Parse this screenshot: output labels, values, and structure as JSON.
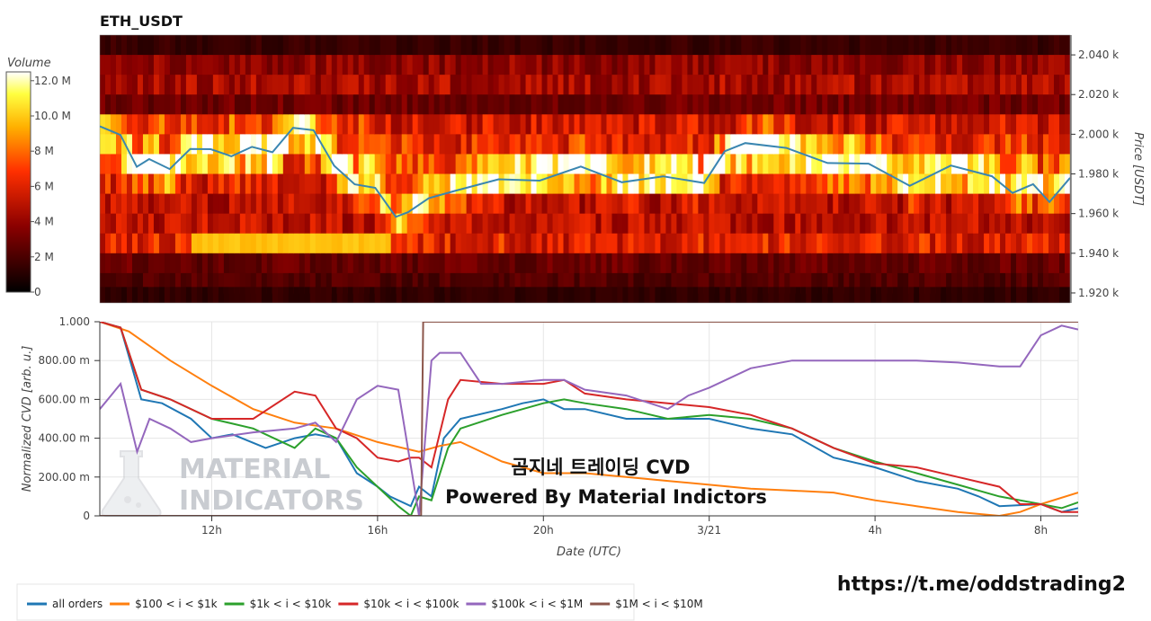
{
  "chart_data": [
    {
      "type": "heatmap",
      "title": "ETH_USDT",
      "ylabel": "Price [USDT]",
      "ylim": [
        1915,
        2050
      ],
      "y_ticks": [
        "2.040 k",
        "2.020 k",
        "2.000 k",
        "1.980 k",
        "1.960 k",
        "1.940 k",
        "1.920 k"
      ],
      "y_tick_values": [
        2040,
        2020,
        2000,
        1980,
        1960,
        1940,
        1920
      ],
      "colorbar": {
        "label": "Volume",
        "ticks": [
          "12.0 M",
          "10.0 M",
          "8 M",
          "6 M",
          "4 M",
          "2 M",
          "0"
        ],
        "tick_values": [
          12,
          10,
          8,
          6,
          4,
          2,
          0
        ],
        "range": [
          0,
          12.5
        ]
      },
      "time_range_hours": [
        9.3,
        32.9
      ],
      "price_bands": [
        {
          "price": 2045,
          "base": 1.5
        },
        {
          "price": 2035,
          "base": 3.8
        },
        {
          "price": 2025,
          "base": 4.5
        },
        {
          "price": 2015,
          "base": 3.0
        },
        {
          "price": 2005,
          "base": 5.5
        },
        {
          "price": 1995,
          "base": 6.5
        },
        {
          "price": 1985,
          "base": 7.5
        },
        {
          "price": 1975,
          "base": 6.0
        },
        {
          "price": 1965,
          "base": 5.0
        },
        {
          "price": 1955,
          "base": 5.0
        },
        {
          "price": 1945,
          "base": 6.0
        },
        {
          "price": 1935,
          "base": 2.8
        },
        {
          "price": 1925,
          "base": 2.2
        },
        {
          "price": 1918,
          "base": 1.3
        }
      ],
      "price_line": {
        "name": "price",
        "x": [
          9.3,
          9.8,
          10.2,
          10.5,
          11.0,
          11.5,
          12.0,
          12.5,
          13.0,
          13.5,
          14.0,
          14.5,
          15.0,
          15.5,
          16.0,
          16.5,
          16.8,
          17.3,
          18.0,
          19.0,
          20.0,
          21.0,
          22.0,
          23.0,
          24.0,
          24.5,
          25.0,
          26.0,
          27.0,
          28.0,
          29.0,
          30.0,
          31.0,
          31.5,
          32.0,
          32.4,
          32.9
        ],
        "y": [
          2004,
          2000,
          1984,
          1988,
          1982,
          1992,
          1993,
          1990,
          1994,
          1991,
          2004,
          2001,
          1985,
          1975,
          1973,
          1957,
          1962,
          1967,
          1973,
          1977,
          1978,
          1985,
          1976,
          1978,
          1976,
          1990,
          1996,
          1994,
          1985,
          1986,
          1975,
          1983,
          1978,
          1970,
          1976,
          1966,
          1978
        ]
      }
    },
    {
      "type": "line",
      "ylabel": "Normalized CVD [arb. u.]",
      "xlabel": "Date (UTC)",
      "ylim": [
        0,
        1.0
      ],
      "y_ticks": [
        "1.000",
        "800.00 m",
        "600.00 m",
        "400.00 m",
        "200.00 m",
        "0"
      ],
      "y_tick_values": [
        1.0,
        0.8,
        0.6,
        0.4,
        0.2,
        0
      ],
      "xlim": [
        9.3,
        32.9
      ],
      "x_ticks": [
        "12h",
        "16h",
        "20h",
        "3/21",
        "4h",
        "8h"
      ],
      "x_tick_values": [
        12,
        16,
        20,
        24,
        28,
        32
      ],
      "legend_position": "bottom",
      "series": [
        {
          "name": "all orders",
          "color": "#1f77b4",
          "x": [
            9.3,
            9.8,
            10.3,
            10.8,
            11.5,
            12.0,
            12.5,
            13.3,
            14.0,
            14.5,
            15.0,
            15.5,
            16.0,
            16.3,
            16.8,
            17.0,
            17.3,
            17.6,
            18.0,
            19.0,
            19.5,
            20.0,
            20.5,
            21.0,
            22.0,
            23.0,
            24.0,
            25.0,
            26.0,
            27.0,
            28.0,
            29.0,
            30.0,
            30.5,
            31.0,
            32.0,
            32.5,
            32.9
          ],
          "y": [
            1.0,
            0.97,
            0.6,
            0.58,
            0.5,
            0.4,
            0.42,
            0.35,
            0.4,
            0.42,
            0.4,
            0.22,
            0.15,
            0.1,
            0.05,
            0.15,
            0.1,
            0.4,
            0.5,
            0.55,
            0.58,
            0.6,
            0.55,
            0.55,
            0.5,
            0.5,
            0.5,
            0.45,
            0.42,
            0.3,
            0.25,
            0.18,
            0.14,
            0.1,
            0.05,
            0.06,
            0.02,
            0.04
          ]
        },
        {
          "name": "$100 < i < $1k",
          "color": "#ff7f0e",
          "x": [
            9.3,
            10.0,
            11.0,
            12.0,
            13.0,
            14.0,
            15.0,
            16.0,
            17.0,
            17.5,
            18.0,
            19.0,
            20.0,
            21.0,
            22.0,
            23.0,
            24.0,
            25.0,
            26.0,
            27.0,
            28.0,
            29.0,
            30.0,
            31.0,
            31.5,
            32.0,
            32.9
          ],
          "y": [
            1.0,
            0.95,
            0.8,
            0.67,
            0.55,
            0.48,
            0.45,
            0.38,
            0.33,
            0.36,
            0.38,
            0.28,
            0.22,
            0.22,
            0.2,
            0.18,
            0.16,
            0.14,
            0.13,
            0.12,
            0.08,
            0.05,
            0.02,
            0.0,
            0.02,
            0.06,
            0.12
          ]
        },
        {
          "name": "$1k < i < $10k",
          "color": "#2ca02c",
          "x": [
            9.3,
            9.8,
            10.3,
            11.0,
            12.0,
            13.0,
            14.0,
            14.5,
            15.0,
            15.5,
            16.0,
            16.5,
            16.8,
            17.0,
            17.3,
            17.7,
            18.0,
            19.0,
            20.0,
            20.5,
            21.0,
            22.0,
            23.0,
            24.0,
            25.0,
            26.0,
            27.0,
            28.0,
            29.0,
            30.0,
            31.0,
            32.0,
            32.5,
            32.9
          ],
          "y": [
            1.0,
            0.97,
            0.65,
            0.6,
            0.5,
            0.45,
            0.35,
            0.45,
            0.4,
            0.25,
            0.15,
            0.05,
            0.0,
            0.1,
            0.08,
            0.35,
            0.45,
            0.52,
            0.58,
            0.6,
            0.58,
            0.55,
            0.5,
            0.52,
            0.5,
            0.45,
            0.35,
            0.28,
            0.22,
            0.16,
            0.1,
            0.06,
            0.04,
            0.07
          ]
        },
        {
          "name": "$10k < i < $100k",
          "color": "#d62728",
          "x": [
            9.3,
            9.8,
            10.3,
            11.0,
            12.0,
            13.0,
            14.0,
            14.5,
            15.0,
            15.5,
            16.0,
            16.5,
            16.8,
            17.0,
            17.3,
            17.7,
            18.0,
            19.0,
            20.0,
            20.5,
            21.0,
            22.0,
            23.0,
            24.0,
            25.0,
            26.0,
            27.0,
            28.0,
            29.0,
            30.0,
            31.0,
            31.5,
            32.0,
            32.5,
            32.9
          ],
          "y": [
            1.0,
            0.97,
            0.65,
            0.6,
            0.5,
            0.5,
            0.64,
            0.62,
            0.45,
            0.4,
            0.3,
            0.28,
            0.3,
            0.3,
            0.25,
            0.6,
            0.7,
            0.68,
            0.68,
            0.7,
            0.63,
            0.6,
            0.58,
            0.56,
            0.52,
            0.45,
            0.35,
            0.27,
            0.25,
            0.2,
            0.15,
            0.06,
            0.06,
            0.02,
            0.02
          ]
        },
        {
          "name": "$100k < i < $1M",
          "color": "#9467bd",
          "x": [
            9.3,
            9.8,
            10.2,
            10.5,
            11.0,
            11.5,
            12.0,
            13.0,
            14.0,
            14.5,
            15.0,
            15.5,
            16.0,
            16.5,
            17.0,
            17.3,
            17.5,
            18.0,
            18.5,
            19.0,
            20.0,
            20.5,
            21.0,
            22.0,
            23.0,
            23.5,
            24.0,
            25.0,
            26.0,
            27.0,
            28.0,
            29.0,
            30.0,
            31.0,
            31.5,
            32.0,
            32.5,
            32.9
          ],
          "y": [
            0.55,
            0.68,
            0.33,
            0.5,
            0.45,
            0.38,
            0.4,
            0.43,
            0.45,
            0.48,
            0.38,
            0.6,
            0.67,
            0.65,
            0.0,
            0.8,
            0.84,
            0.84,
            0.68,
            0.68,
            0.7,
            0.7,
            0.65,
            0.62,
            0.55,
            0.62,
            0.66,
            0.76,
            0.8,
            0.8,
            0.8,
            0.8,
            0.79,
            0.77,
            0.77,
            0.93,
            0.98,
            0.96
          ]
        },
        {
          "name": "$1M < i < $10M",
          "color": "#8c564b",
          "x": [
            9.3,
            16.9,
            17.05,
            17.1,
            32.9
          ],
          "y": [
            0.0,
            0.0,
            0.0,
            1.0,
            1.0
          ]
        }
      ]
    }
  ],
  "watermark": {
    "line1": "MATERIAL",
    "line2": "INDICATORS"
  },
  "overlay_text": {
    "line1": "곰지네 트레이딩 CVD",
    "line2": "Powered By Material Indictors"
  },
  "link_text": "https://t.me/oddstrading2"
}
